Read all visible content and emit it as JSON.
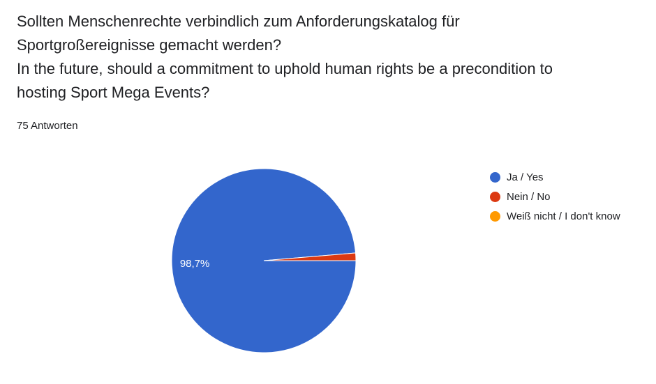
{
  "question": {
    "line1": "Sollten Menschenrechte verbindlich zum Anforderungskatalog für",
    "line2": "Sportgroßereignisse gemacht werden?",
    "line3": "In the future, should a commitment to uphold human rights be a precondition to",
    "line4": "hosting Sport Mega Events?"
  },
  "response_count": "75 Antworten",
  "chart_data": {
    "type": "pie",
    "total_responses": 75,
    "slices": [
      {
        "label": "Ja / Yes",
        "value": 74,
        "percent_label": "98,7%",
        "color": "#3366cc"
      },
      {
        "label": "Nein / No",
        "value": 1,
        "percent_label": "",
        "color": "#dc3912"
      },
      {
        "label": "Weiß nicht / I don't know",
        "value": 0,
        "percent_label": "",
        "color": "#ff9900"
      }
    ],
    "legend_position": "right"
  }
}
